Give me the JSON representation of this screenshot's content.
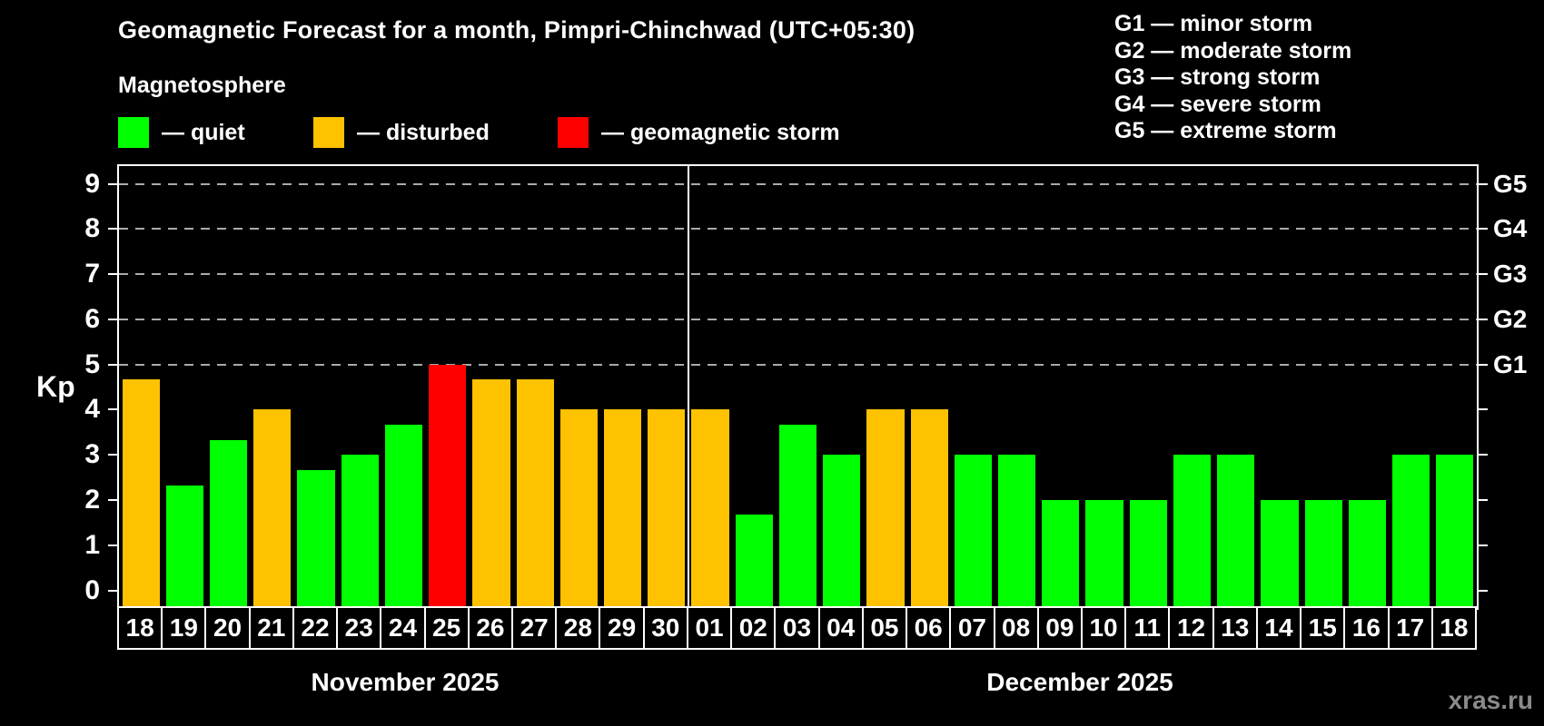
{
  "title": "Geomagnetic Forecast for a month, Pimpri-Chinchwad (UTC+05:30)",
  "subtitle": "Magnetosphere",
  "legend": [
    {
      "key": "quiet",
      "label": "— quiet",
      "color": "#00ff00"
    },
    {
      "key": "disturbed",
      "label": "— disturbed",
      "color": "#ffc200"
    },
    {
      "key": "storm",
      "label": "— geomagnetic storm",
      "color": "#ff0000"
    }
  ],
  "g_scale_legend": [
    {
      "label": "G1 — minor storm"
    },
    {
      "label": "G2 — moderate storm"
    },
    {
      "label": "G3 — strong storm"
    },
    {
      "label": "G4 — severe storm"
    },
    {
      "label": "G5 — extreme storm"
    }
  ],
  "watermark": "xras.ru",
  "colors": {
    "background": "#000000",
    "axis": "#ffffff",
    "gridline": "#aaaaaa",
    "text": "#ffffff",
    "watermark": "#8a8a8a"
  },
  "chart_data": {
    "type": "bar",
    "ylabel": "Kp",
    "ylim": [
      0,
      9
    ],
    "yticks": [
      0,
      1,
      2,
      3,
      4,
      5,
      6,
      7,
      8,
      9
    ],
    "gridlines_at": [
      5,
      6,
      7,
      8,
      9
    ],
    "grid": "dashed horizontal at Kp 5-9 only",
    "legend_position": "top",
    "right_axis": [
      {
        "kp": 5,
        "label": "G1"
      },
      {
        "kp": 6,
        "label": "G2"
      },
      {
        "kp": 7,
        "label": "G3"
      },
      {
        "kp": 8,
        "label": "G4"
      },
      {
        "kp": 9,
        "label": "G5"
      }
    ],
    "months": [
      {
        "label": "November 2025",
        "days": 13
      },
      {
        "label": "December 2025",
        "days": 18
      }
    ],
    "categories": [
      "18",
      "19",
      "20",
      "21",
      "22",
      "23",
      "24",
      "25",
      "26",
      "27",
      "28",
      "29",
      "30",
      "01",
      "02",
      "03",
      "04",
      "05",
      "06",
      "07",
      "08",
      "09",
      "10",
      "11",
      "12",
      "13",
      "14",
      "15",
      "16",
      "17",
      "18"
    ],
    "series": [
      {
        "name": "Kp forecast",
        "values": [
          4.67,
          2.33,
          3.33,
          4,
          2.67,
          3,
          3.67,
          5,
          4.67,
          4.67,
          4,
          4,
          4,
          4,
          1.67,
          3.67,
          3,
          4,
          4,
          3,
          3,
          2,
          2,
          2,
          3,
          3,
          2,
          2,
          2,
          3,
          3
        ],
        "statuses": [
          "disturbed",
          "quiet",
          "quiet",
          "disturbed",
          "quiet",
          "quiet",
          "quiet",
          "storm",
          "disturbed",
          "disturbed",
          "disturbed",
          "disturbed",
          "disturbed",
          "disturbed",
          "quiet",
          "quiet",
          "quiet",
          "disturbed",
          "disturbed",
          "quiet",
          "quiet",
          "quiet",
          "quiet",
          "quiet",
          "quiet",
          "quiet",
          "quiet",
          "quiet",
          "quiet",
          "quiet",
          "quiet"
        ]
      }
    ]
  }
}
